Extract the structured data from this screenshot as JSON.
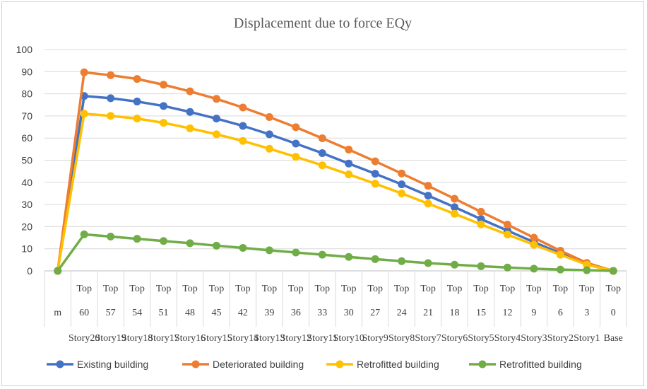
{
  "chart_data": {
    "type": "line",
    "title": "Displacement due to force EQy",
    "xlabel": "",
    "ylabel": "",
    "ylim": [
      0,
      100
    ],
    "yticks": [
      0,
      10,
      20,
      30,
      40,
      50,
      60,
      70,
      80,
      90,
      100
    ],
    "grid": true,
    "legend": "bottom",
    "categories": [
      {
        "levels": [
          "",
          "m",
          ""
        ]
      },
      {
        "levels": [
          "Top",
          "60",
          "Story20"
        ]
      },
      {
        "levels": [
          "Top",
          "57",
          "Story19"
        ]
      },
      {
        "levels": [
          "Top",
          "54",
          "Story18"
        ]
      },
      {
        "levels": [
          "Top",
          "51",
          "Story17"
        ]
      },
      {
        "levels": [
          "Top",
          "48",
          "Story16"
        ]
      },
      {
        "levels": [
          "Top",
          "45",
          "Story15"
        ]
      },
      {
        "levels": [
          "Top",
          "42",
          "Story14"
        ]
      },
      {
        "levels": [
          "Top",
          "39",
          "Story13"
        ]
      },
      {
        "levels": [
          "Top",
          "36",
          "Story12"
        ]
      },
      {
        "levels": [
          "Top",
          "33",
          "Story11"
        ]
      },
      {
        "levels": [
          "Top",
          "30",
          "Story10"
        ]
      },
      {
        "levels": [
          "Top",
          "27",
          "Story9"
        ]
      },
      {
        "levels": [
          "Top",
          "24",
          "Story8"
        ]
      },
      {
        "levels": [
          "Top",
          "21",
          "Story7"
        ]
      },
      {
        "levels": [
          "Top",
          "18",
          "Story6"
        ]
      },
      {
        "levels": [
          "Top",
          "15",
          "Story5"
        ]
      },
      {
        "levels": [
          "Top",
          "12",
          "Story4"
        ]
      },
      {
        "levels": [
          "Top",
          "9",
          "Story3"
        ]
      },
      {
        "levels": [
          "Top",
          "6",
          "Story2"
        ]
      },
      {
        "levels": [
          "Top",
          "3",
          "Story1"
        ]
      },
      {
        "levels": [
          "Top",
          "0",
          "Base"
        ]
      }
    ],
    "series": [
      {
        "name": "Existing building",
        "color": "#4472C4",
        "values": [
          0,
          79,
          78,
          76.5,
          74.5,
          71.8,
          68.8,
          65.5,
          61.7,
          57.5,
          53.2,
          48.5,
          43.9,
          39.1,
          34,
          28.8,
          23.4,
          18.2,
          13,
          8,
          3.2,
          0
        ]
      },
      {
        "name": "Deteriorated building",
        "color": "#ED7D31",
        "values": [
          0,
          89.7,
          88.4,
          86.7,
          84.1,
          81.1,
          77.7,
          73.8,
          69.5,
          64.9,
          59.9,
          54.8,
          49.5,
          44,
          38.4,
          32.6,
          26.7,
          20.9,
          15,
          9.1,
          3.6,
          0
        ]
      },
      {
        "name": "Retrofitted building",
        "color": "#FFC000",
        "values": [
          0,
          71,
          70,
          68.8,
          66.9,
          64.4,
          61.7,
          58.7,
          55.2,
          51.5,
          47.7,
          43.6,
          39.4,
          35,
          30.4,
          25.8,
          21,
          16.4,
          11.8,
          7.3,
          2.8,
          0
        ]
      },
      {
        "name": "Retrofitted building",
        "color": "#70AD47",
        "values": [
          0,
          16.5,
          15.5,
          14.5,
          13.5,
          12.5,
          11.4,
          10.4,
          9.3,
          8.3,
          7.3,
          6.3,
          5.3,
          4.4,
          3.5,
          2.8,
          2.1,
          1.5,
          1,
          0.6,
          0.3,
          0
        ]
      }
    ]
  }
}
